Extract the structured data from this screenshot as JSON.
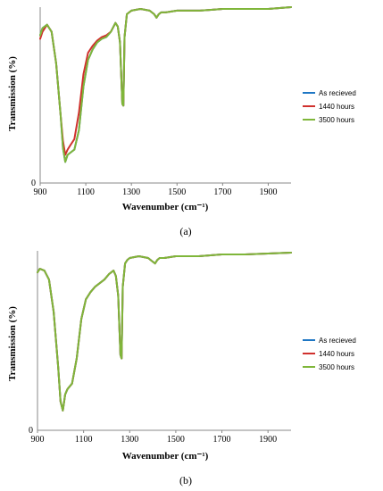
{
  "chart_data": [
    {
      "type": "line",
      "panel": "(a)",
      "xlabel": "Wavenumber (cm⁻¹)",
      "ylabel": "Transmission (%)",
      "xlim": [
        900,
        2000
      ],
      "ylim": [
        0,
        100
      ],
      "x_ticks": [
        "900",
        "1100",
        "1300",
        "1500",
        "1700",
        "1900"
      ],
      "y_ticks": [
        "0"
      ],
      "grid": false,
      "legend_position": "right",
      "caption": "(a)",
      "series": [
        {
          "name": "As recieved",
          "color": "#1f77c4",
          "x": [
            900,
            910,
            930,
            950,
            970,
            990,
            1000,
            1010,
            1020,
            1030,
            1050,
            1070,
            1090,
            1110,
            1130,
            1150,
            1170,
            1190,
            1210,
            1230,
            1240,
            1250,
            1260,
            1265,
            1270,
            1280,
            1290,
            1300,
            1340,
            1380,
            1400,
            1410,
            1420,
            1430,
            1450,
            1500,
            1600,
            1650,
            1700,
            1800,
            1900,
            2000
          ],
          "y": [
            84,
            88,
            90,
            86,
            68,
            38,
            20,
            12,
            16,
            17,
            19,
            30,
            55,
            70,
            76,
            80,
            82,
            83,
            86,
            91,
            89,
            80,
            45,
            44,
            83,
            96,
            97,
            98,
            99,
            98,
            96,
            94,
            96,
            97,
            97,
            98,
            98,
            98.5,
            99,
            99,
            99,
            100
          ]
        },
        {
          "name": "1440 hours",
          "color": "#d0312d",
          "x": [
            900,
            910,
            930,
            950,
            970,
            990,
            1000,
            1010,
            1020,
            1030,
            1050,
            1070,
            1090,
            1110,
            1130,
            1150,
            1170,
            1190,
            1210,
            1230,
            1240,
            1250,
            1260,
            1265,
            1270,
            1280,
            1290,
            1300,
            1340,
            1380,
            1400,
            1410,
            1420,
            1430,
            1450,
            1500,
            1600,
            1650,
            1700,
            1800,
            1900,
            2000
          ],
          "y": [
            82,
            86,
            90,
            86,
            68,
            38,
            24,
            16,
            19,
            21,
            25,
            40,
            62,
            74,
            78,
            81,
            83,
            84,
            86,
            91,
            89,
            80,
            45,
            44,
            83,
            96,
            97,
            98,
            99,
            98,
            96,
            94,
            96,
            97,
            97,
            98,
            98,
            98.5,
            99,
            99,
            99,
            100
          ]
        },
        {
          "name": "3500 hours",
          "color": "#7fb63a",
          "x": [
            900,
            910,
            930,
            950,
            970,
            990,
            1000,
            1010,
            1020,
            1030,
            1050,
            1070,
            1090,
            1110,
            1130,
            1150,
            1170,
            1190,
            1210,
            1230,
            1240,
            1250,
            1260,
            1265,
            1270,
            1280,
            1290,
            1300,
            1340,
            1380,
            1400,
            1410,
            1420,
            1430,
            1450,
            1500,
            1600,
            1650,
            1700,
            1800,
            1900,
            2000
          ],
          "y": [
            84,
            88,
            90,
            86,
            68,
            38,
            20,
            12,
            16,
            17,
            19,
            30,
            55,
            70,
            76,
            80,
            82,
            83,
            86,
            91,
            89,
            80,
            45,
            44,
            83,
            96,
            97,
            98,
            99,
            98,
            96,
            94,
            96,
            97,
            97,
            98,
            98,
            98.5,
            99,
            99,
            99,
            100
          ]
        }
      ]
    },
    {
      "type": "line",
      "panel": "(b)",
      "xlabel": "Wavenumber (cm⁻¹)",
      "ylabel": "Transmission (%)",
      "xlim": [
        900,
        2000
      ],
      "ylim": [
        0,
        100
      ],
      "x_ticks": [
        "900",
        "1100",
        "1300",
        "1500",
        "1700",
        "1900"
      ],
      "y_ticks": [
        "0"
      ],
      "grid": false,
      "legend_position": "right",
      "caption": "(b)",
      "series": [
        {
          "name": "As recieved",
          "color": "#1f77c4",
          "x": [
            900,
            910,
            930,
            950,
            970,
            990,
            1000,
            1010,
            1020,
            1030,
            1050,
            1070,
            1090,
            1110,
            1130,
            1150,
            1170,
            1190,
            1210,
            1230,
            1240,
            1250,
            1260,
            1265,
            1270,
            1280,
            1290,
            1300,
            1340,
            1380,
            1400,
            1410,
            1420,
            1430,
            1450,
            1500,
            1600,
            1650,
            1700,
            1800,
            1900,
            2000
          ],
          "y": [
            88,
            90,
            89,
            84,
            66,
            35,
            16,
            11,
            20,
            23,
            26,
            40,
            62,
            73,
            77,
            80,
            82,
            84,
            87,
            89,
            86,
            75,
            42,
            40,
            80,
            93,
            95,
            96,
            97,
            96,
            94,
            93,
            95,
            96,
            96,
            97,
            97,
            97.5,
            98,
            98,
            98.5,
            99
          ]
        },
        {
          "name": "1440 hours",
          "color": "#d0312d",
          "x": [
            900,
            910,
            930,
            950,
            970,
            990,
            1000,
            1010,
            1020,
            1030,
            1050,
            1070,
            1090,
            1110,
            1130,
            1150,
            1170,
            1190,
            1210,
            1230,
            1240,
            1250,
            1260,
            1265,
            1270,
            1280,
            1290,
            1300,
            1340,
            1380,
            1400,
            1410,
            1420,
            1430,
            1450,
            1500,
            1600,
            1650,
            1700,
            1800,
            1900,
            2000
          ],
          "y": [
            88,
            90,
            89,
            84,
            66,
            35,
            16,
            11,
            20,
            23,
            26,
            40,
            62,
            73,
            77,
            80,
            82,
            84,
            87,
            89,
            86,
            75,
            42,
            40,
            80,
            93,
            95,
            96,
            97,
            96,
            94,
            93,
            95,
            96,
            96,
            97,
            97,
            97.5,
            98,
            98,
            98.5,
            99
          ]
        },
        {
          "name": "3500 hours",
          "color": "#7fb63a",
          "x": [
            900,
            910,
            930,
            950,
            970,
            990,
            1000,
            1010,
            1020,
            1030,
            1050,
            1070,
            1090,
            1110,
            1130,
            1150,
            1170,
            1190,
            1210,
            1230,
            1240,
            1250,
            1260,
            1265,
            1270,
            1280,
            1290,
            1300,
            1340,
            1380,
            1400,
            1410,
            1420,
            1430,
            1450,
            1500,
            1600,
            1650,
            1700,
            1800,
            1900,
            2000
          ],
          "y": [
            88,
            90,
            89,
            84,
            66,
            35,
            16,
            11,
            20,
            23,
            26,
            40,
            62,
            73,
            77,
            80,
            82,
            84,
            87,
            89,
            86,
            75,
            42,
            40,
            80,
            93,
            95,
            96,
            97,
            96,
            94,
            93,
            95,
            96,
            96,
            97,
            97,
            97.5,
            98,
            98,
            98.5,
            99
          ]
        }
      ]
    }
  ]
}
